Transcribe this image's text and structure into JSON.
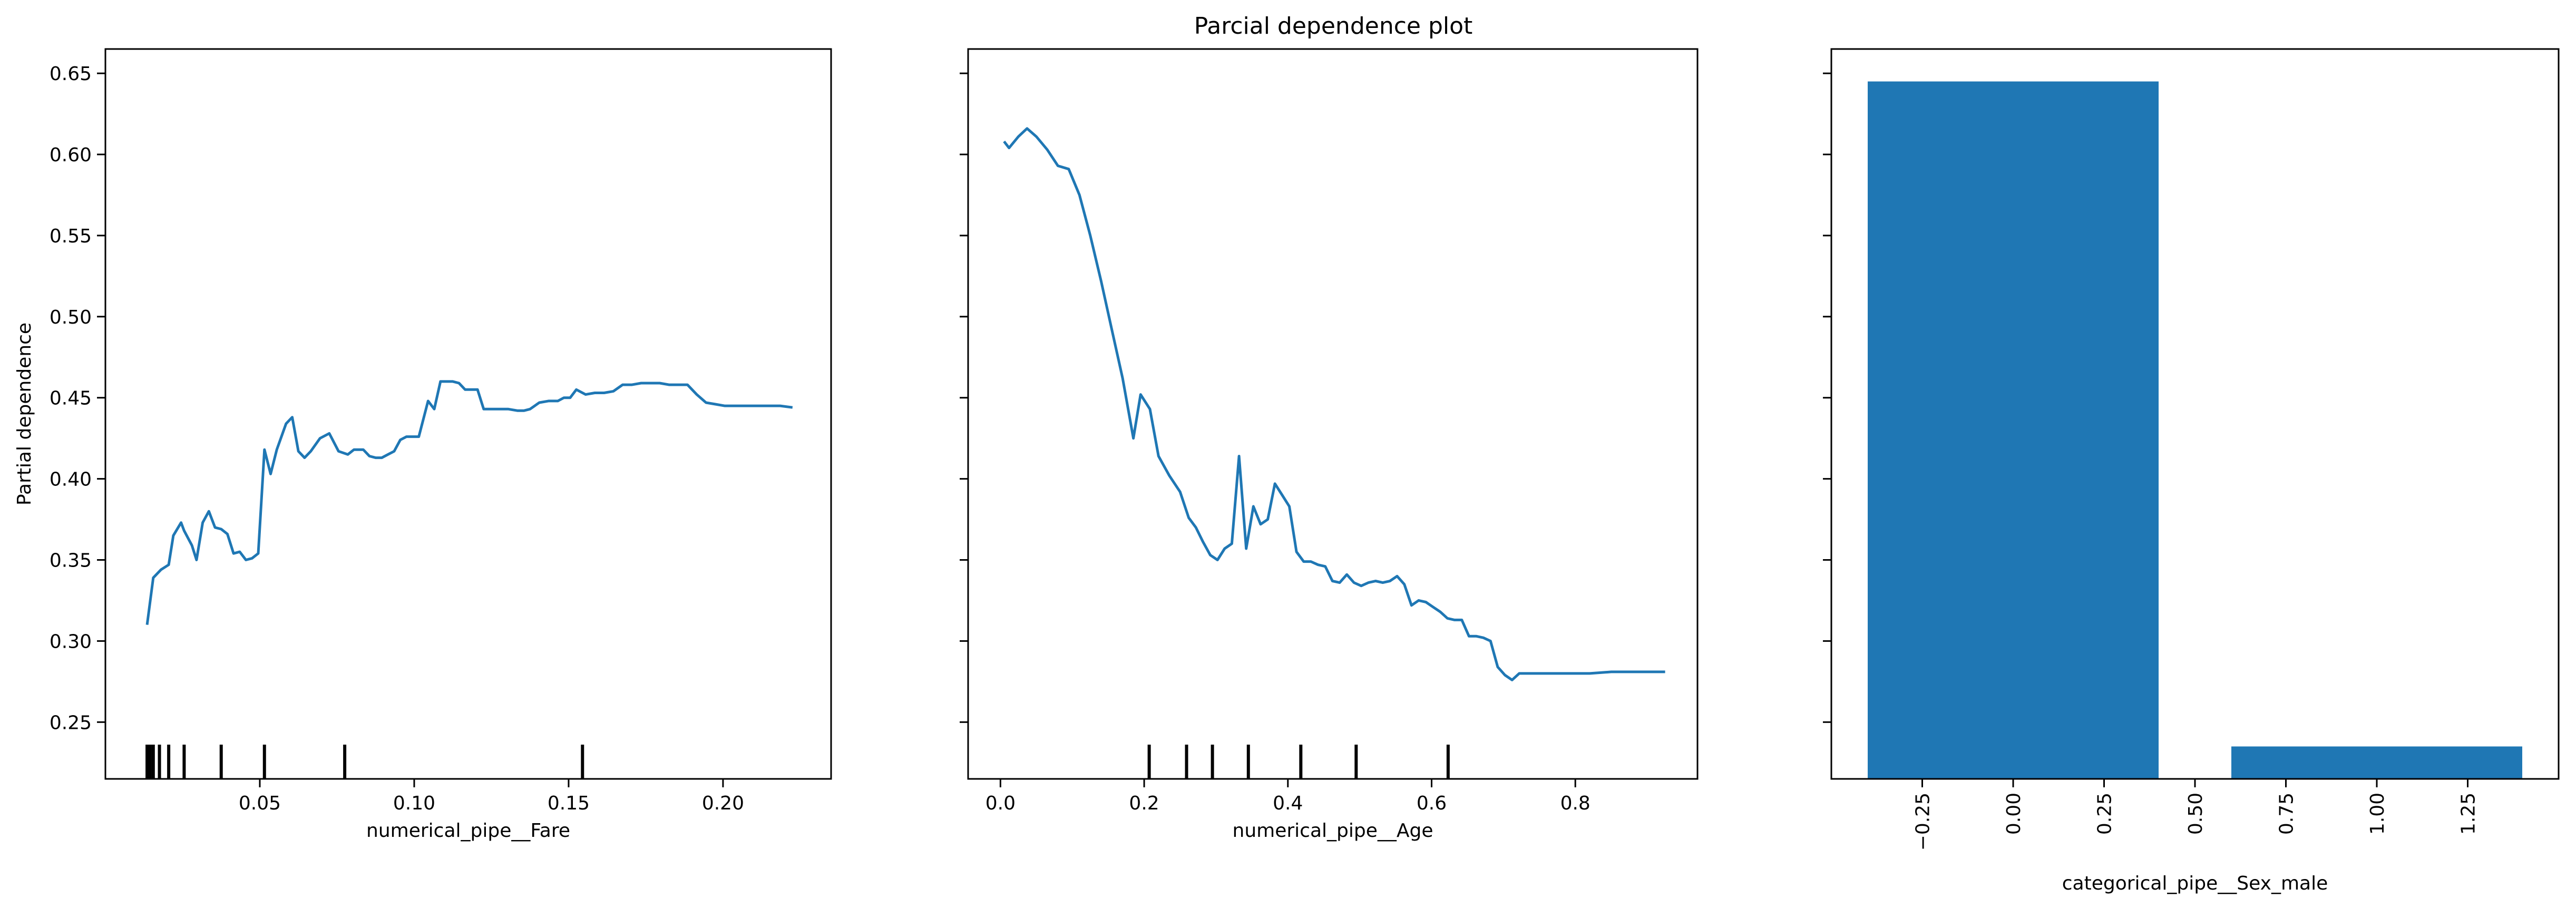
{
  "title": "Parcial dependence plot",
  "colors": {
    "series": "#1f77b4",
    "axis": "#000000",
    "rug": "#000000",
    "background": "#ffffff"
  },
  "chart_data": [
    {
      "type": "line",
      "xlabel": "numerical_pipe__Fare",
      "ylabel": "Partial dependence",
      "xlim": [
        0.0,
        0.235
      ],
      "ylim": [
        0.215,
        0.665
      ],
      "xticks": [
        0.05,
        0.1,
        0.15,
        0.2
      ],
      "xtick_labels": [
        "0.05",
        "0.10",
        "0.15",
        "0.20"
      ],
      "yticks": [
        0.25,
        0.3,
        0.35,
        0.4,
        0.45,
        0.5,
        0.55,
        0.6,
        0.65
      ],
      "ytick_labels": [
        "0.25",
        "0.30",
        "0.35",
        "0.40",
        "0.45",
        "0.50",
        "0.55",
        "0.60",
        "0.65"
      ],
      "grid": false,
      "series": [
        {
          "x": [
            0.0135,
            0.0155,
            0.018,
            0.0205,
            0.022,
            0.0245,
            0.0255,
            0.028,
            0.0295,
            0.0315,
            0.0335,
            0.0355,
            0.0375,
            0.0395,
            0.0415,
            0.0435,
            0.0455,
            0.0475,
            0.0495,
            0.0515,
            0.0535,
            0.0555,
            0.0585,
            0.0605,
            0.0625,
            0.0645,
            0.0665,
            0.0695,
            0.0725,
            0.0755,
            0.0785,
            0.0805,
            0.0835,
            0.0855,
            0.0875,
            0.0895,
            0.0915,
            0.0935,
            0.0955,
            0.0975,
            0.0995,
            0.1015,
            0.1045,
            0.1065,
            0.1085,
            0.1105,
            0.1125,
            0.1145,
            0.1165,
            0.1185,
            0.1205,
            0.1225,
            0.125,
            0.1275,
            0.1305,
            0.1335,
            0.1355,
            0.1375,
            0.1405,
            0.1435,
            0.1465,
            0.1485,
            0.1505,
            0.1525,
            0.1555,
            0.1585,
            0.1615,
            0.1645,
            0.1675,
            0.1705,
            0.1735,
            0.1765,
            0.1795,
            0.1825,
            0.1855,
            0.1885,
            0.1915,
            0.1945,
            0.1975,
            0.2005,
            0.2035,
            0.2065,
            0.2095,
            0.2125,
            0.2155,
            0.2185,
            0.2225
          ],
          "y": [
            0.31,
            0.339,
            0.344,
            0.347,
            0.365,
            0.373,
            0.368,
            0.359,
            0.35,
            0.373,
            0.38,
            0.37,
            0.369,
            0.366,
            0.354,
            0.355,
            0.35,
            0.351,
            0.354,
            0.418,
            0.403,
            0.418,
            0.434,
            0.438,
            0.417,
            0.413,
            0.417,
            0.425,
            0.428,
            0.417,
            0.415,
            0.418,
            0.418,
            0.414,
            0.413,
            0.413,
            0.415,
            0.417,
            0.424,
            0.426,
            0.426,
            0.426,
            0.448,
            0.443,
            0.46,
            0.46,
            0.46,
            0.459,
            0.455,
            0.455,
            0.455,
            0.443,
            0.443,
            0.443,
            0.443,
            0.442,
            0.442,
            0.443,
            0.447,
            0.448,
            0.448,
            0.45,
            0.45,
            0.455,
            0.452,
            0.453,
            0.453,
            0.454,
            0.458,
            0.458,
            0.459,
            0.459,
            0.459,
            0.458,
            0.458,
            0.458,
            0.452,
            0.447,
            0.446,
            0.445,
            0.445,
            0.445,
            0.445,
            0.445,
            0.445,
            0.445,
            0.444
          ]
        }
      ],
      "rug": [
        0.0135,
        0.0145,
        0.0155,
        0.0175,
        0.0205,
        0.0255,
        0.0375,
        0.0515,
        0.0775,
        0.1545
      ]
    },
    {
      "type": "line",
      "xlabel": "numerical_pipe__Age",
      "ylabel": "",
      "xlim": [
        -0.045,
        0.97
      ],
      "ylim": [
        0.215,
        0.665
      ],
      "xticks": [
        0.0,
        0.2,
        0.4,
        0.6,
        0.8
      ],
      "xtick_labels": [
        "0.0",
        "0.2",
        "0.4",
        "0.6",
        "0.8"
      ],
      "yticks": [
        0.25,
        0.3,
        0.35,
        0.4,
        0.45,
        0.5,
        0.55,
        0.6,
        0.65
      ],
      "ytick_labels": [],
      "grid": false,
      "series": [
        {
          "x": [
            0.005,
            0.012,
            0.025,
            0.037,
            0.05,
            0.065,
            0.08,
            0.095,
            0.11,
            0.125,
            0.14,
            0.155,
            0.17,
            0.185,
            0.195,
            0.208,
            0.22,
            0.235,
            0.25,
            0.262,
            0.272,
            0.282,
            0.292,
            0.302,
            0.312,
            0.322,
            0.332,
            0.342,
            0.352,
            0.362,
            0.372,
            0.382,
            0.392,
            0.402,
            0.412,
            0.422,
            0.432,
            0.442,
            0.452,
            0.462,
            0.472,
            0.482,
            0.492,
            0.502,
            0.512,
            0.522,
            0.532,
            0.542,
            0.552,
            0.562,
            0.572,
            0.582,
            0.592,
            0.602,
            0.612,
            0.622,
            0.632,
            0.642,
            0.652,
            0.662,
            0.672,
            0.682,
            0.692,
            0.702,
            0.712,
            0.722,
            0.732,
            0.742,
            0.752,
            0.762,
            0.772,
            0.782,
            0.8,
            0.82,
            0.85,
            0.88,
            0.91,
            0.925
          ],
          "y": [
            0.608,
            0.604,
            0.611,
            0.616,
            0.611,
            0.603,
            0.593,
            0.591,
            0.575,
            0.55,
            0.522,
            0.492,
            0.462,
            0.425,
            0.452,
            0.443,
            0.414,
            0.402,
            0.392,
            0.376,
            0.37,
            0.361,
            0.353,
            0.35,
            0.357,
            0.36,
            0.414,
            0.357,
            0.383,
            0.372,
            0.375,
            0.397,
            0.39,
            0.383,
            0.355,
            0.349,
            0.349,
            0.347,
            0.346,
            0.337,
            0.336,
            0.341,
            0.336,
            0.334,
            0.336,
            0.337,
            0.336,
            0.337,
            0.34,
            0.335,
            0.322,
            0.325,
            0.324,
            0.321,
            0.318,
            0.314,
            0.313,
            0.313,
            0.303,
            0.303,
            0.302,
            0.3,
            0.284,
            0.279,
            0.276,
            0.28,
            0.28,
            0.28,
            0.28,
            0.28,
            0.28,
            0.28,
            0.28,
            0.28,
            0.281,
            0.281,
            0.281,
            0.281
          ]
        }
      ],
      "rug": [
        0.207,
        0.259,
        0.295,
        0.345,
        0.418,
        0.495,
        0.623
      ]
    },
    {
      "type": "bar",
      "xlabel": "categorical_pipe__Sex_male",
      "ylabel": "",
      "xlim": [
        -0.5,
        1.5
      ],
      "ylim": [
        0.215,
        0.665
      ],
      "xticks": [
        -0.25,
        0.0,
        0.25,
        0.5,
        0.75,
        1.0,
        1.25
      ],
      "xtick_labels": [
        "−0.25",
        "0.00",
        "0.25",
        "0.50",
        "0.75",
        "1.00",
        "1.25"
      ],
      "yticks": [
        0.25,
        0.3,
        0.35,
        0.4,
        0.45,
        0.5,
        0.55,
        0.6,
        0.65
      ],
      "ytick_labels": [],
      "grid": false,
      "bars": [
        {
          "x": 0,
          "width": 0.8,
          "value": 0.645
        },
        {
          "x": 1,
          "width": 0.8,
          "value": 0.235
        }
      ]
    }
  ]
}
